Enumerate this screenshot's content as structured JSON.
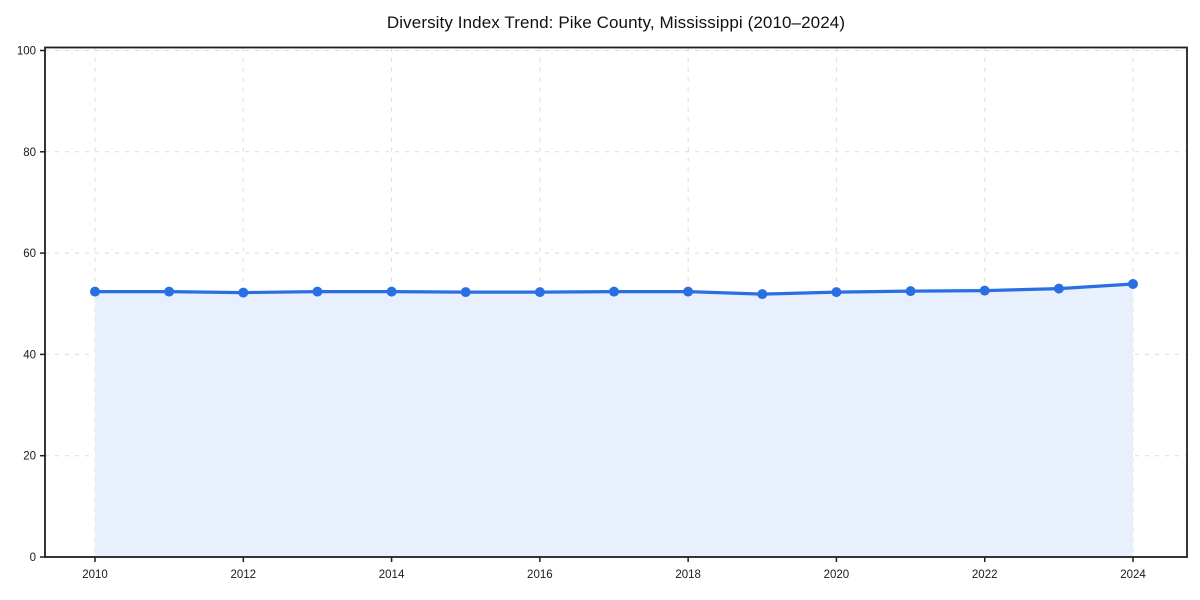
{
  "page": {
    "background": "#ffffff"
  },
  "chart_data": {
    "type": "line",
    "title": "Diversity Index Trend: Pike County, Mississippi (2010–2024)",
    "x": [
      2010,
      2011,
      2012,
      2013,
      2014,
      2015,
      2016,
      2017,
      2018,
      2019,
      2020,
      2021,
      2022,
      2023,
      2024
    ],
    "series": [
      {
        "name": "Diversity Index",
        "values": [
          52.4,
          52.4,
          52.2,
          52.4,
          52.4,
          52.3,
          52.3,
          52.4,
          52.4,
          51.9,
          52.3,
          52.5,
          52.6,
          53.0,
          53.9
        ]
      }
    ],
    "xlabel": "",
    "ylabel": "",
    "ylim": [
      0,
      100
    ],
    "yticks": [
      0,
      20,
      40,
      60,
      80,
      100
    ],
    "xticks": [
      2010,
      2012,
      2014,
      2016,
      2018,
      2020,
      2022,
      2024
    ],
    "grid": true,
    "grid_style": "dashed",
    "legend": "none",
    "marker": "circle",
    "area_fill": true,
    "colors": {
      "line": "#2a6fe2",
      "marker": "#2a6fe2",
      "fill": "#e8f0fd",
      "grid": "#dcdcdc",
      "axis": "#1f1f1f",
      "tick_label": "#1a1a1a",
      "title": "#111111"
    }
  }
}
